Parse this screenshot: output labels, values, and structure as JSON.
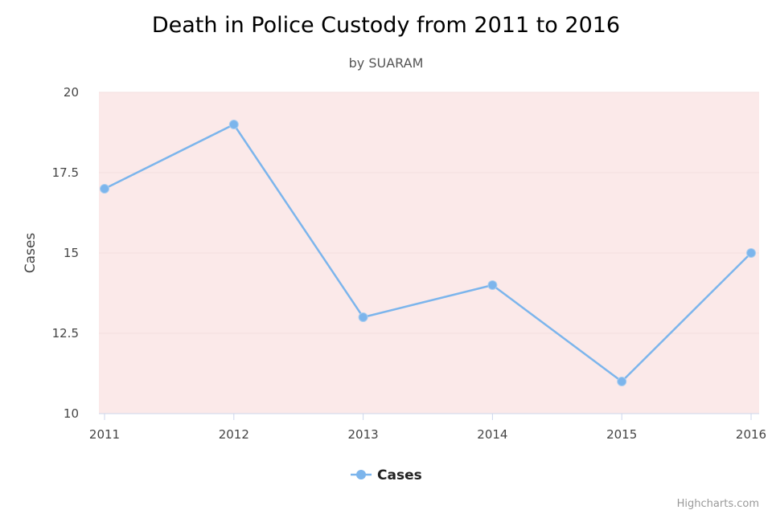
{
  "chart_data": {
    "type": "line",
    "title": "Death in Police Custody from 2011 to 2016",
    "subtitle": "by SUARAM",
    "xlabel": "",
    "ylabel": "Cases",
    "categories": [
      "2011",
      "2012",
      "2013",
      "2014",
      "2015",
      "2016"
    ],
    "series": [
      {
        "name": "Cases",
        "values": [
          17,
          19,
          13,
          14,
          11,
          15
        ]
      }
    ],
    "ylim": [
      10,
      20
    ],
    "yticks": [
      10,
      12.5,
      15,
      17.5,
      20
    ],
    "ytick_labels": [
      "10",
      "12.5",
      "15",
      "17.5",
      "20"
    ],
    "grid": true,
    "legend": "bottom-center"
  },
  "credits": "Highcharts.com",
  "colors": {
    "series": "#7cb5ec",
    "plot_background": "#fbe9e9",
    "gridline": "#f3dede",
    "axis_line": "#ccd6eb"
  }
}
